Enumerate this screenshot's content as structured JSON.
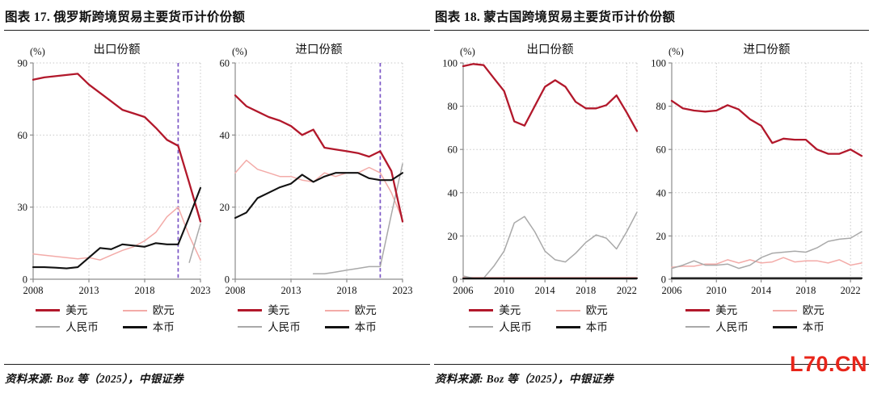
{
  "figures": [
    {
      "title": "图表 17. 俄罗斯跨境贸易主要货币计价份额",
      "source": "资料来源: Boz 等（2025），中银证券",
      "charts": [
        0,
        1
      ]
    },
    {
      "title": "图表 18. 蒙古国跨境贸易主要货币计价份额",
      "source": "资料来源: Boz 等（2025），中银证券",
      "charts": [
        2,
        3
      ]
    }
  ],
  "legend": {
    "items": [
      {
        "label": "美元",
        "key": "usd"
      },
      {
        "label": "欧元",
        "key": "eur"
      },
      {
        "label": "人民币",
        "key": "rmb"
      },
      {
        "label": "本币",
        "key": "loc"
      }
    ]
  },
  "colors": {
    "usd": "#b2182b",
    "eur": "#f3aba8",
    "rmb": "#a9a9a9",
    "loc": "#121212",
    "vline": "#7b57c6",
    "watermark": "#e8251a"
  },
  "watermark": "L70.CN",
  "chart_data": [
    {
      "type": "line",
      "title": "出口份额",
      "unit": "(%)",
      "x": [
        2008,
        2009,
        2010,
        2011,
        2012,
        2013,
        2014,
        2015,
        2016,
        2017,
        2018,
        2019,
        2020,
        2021,
        2022,
        2023
      ],
      "xticks": [
        2008,
        2013,
        2018,
        2023
      ],
      "ylim": [
        0,
        90
      ],
      "yticks": [
        0,
        30,
        60,
        90
      ],
      "vline": 2021,
      "grid": true,
      "series": [
        {
          "name": "美元",
          "key": "usd",
          "values": [
            83,
            84,
            84.5,
            85,
            85.5,
            81,
            77.5,
            74,
            70.5,
            69,
            67.5,
            63,
            58,
            55.5,
            40,
            24
          ]
        },
        {
          "name": "欧元",
          "key": "eur",
          "values": [
            10.5,
            10,
            9.5,
            9,
            8.5,
            9,
            8,
            10,
            12,
            13.5,
            16,
            19.5,
            26,
            30,
            18,
            8
          ]
        },
        {
          "name": "人民币",
          "key": "rmb",
          "values": [
            null,
            null,
            null,
            null,
            null,
            null,
            null,
            null,
            null,
            null,
            null,
            null,
            null,
            null,
            7,
            23
          ]
        },
        {
          "name": "本币",
          "key": "loc",
          "values": [
            5,
            5,
            4.8,
            4.5,
            5,
            9,
            13,
            12.5,
            14.5,
            14,
            13.5,
            15,
            14.5,
            14.5,
            26,
            38
          ]
        }
      ]
    },
    {
      "type": "line",
      "title": "进口份额",
      "unit": "(%)",
      "x": [
        2008,
        2009,
        2010,
        2011,
        2012,
        2013,
        2014,
        2015,
        2016,
        2017,
        2018,
        2019,
        2020,
        2021,
        2022,
        2023
      ],
      "xticks": [
        2008,
        2013,
        2018,
        2023
      ],
      "ylim": [
        0,
        60
      ],
      "yticks": [
        0,
        20,
        40,
        60
      ],
      "vline": 2021,
      "grid": true,
      "series": [
        {
          "name": "美元",
          "key": "usd",
          "values": [
            51,
            48,
            46.5,
            45,
            44,
            42.5,
            40,
            41.5,
            36.5,
            36,
            35.5,
            35,
            34,
            35.5,
            30,
            16
          ]
        },
        {
          "name": "欧元",
          "key": "eur",
          "values": [
            29.5,
            33,
            30.5,
            29.5,
            28.5,
            28.5,
            27.5,
            27,
            29.5,
            28.5,
            29.5,
            29.5,
            31,
            29.5,
            24,
            16.5
          ]
        },
        {
          "name": "人民币",
          "key": "rmb",
          "values": [
            null,
            null,
            null,
            null,
            null,
            null,
            null,
            1.5,
            1.5,
            2,
            2.5,
            3,
            3.5,
            3.5,
            18,
            32
          ]
        },
        {
          "name": "本币",
          "key": "loc",
          "values": [
            17,
            18.5,
            22.5,
            24,
            25.5,
            26.5,
            29,
            27,
            28.5,
            29.5,
            29.5,
            29.5,
            28,
            27.5,
            27.5,
            29.5
          ]
        }
      ]
    },
    {
      "type": "line",
      "title": "出口份额",
      "unit": "(%)",
      "x": [
        2006,
        2007,
        2008,
        2009,
        2010,
        2011,
        2012,
        2013,
        2014,
        2015,
        2016,
        2017,
        2018,
        2019,
        2020,
        2021,
        2022,
        2023
      ],
      "xticks": [
        2006,
        2010,
        2014,
        2018,
        2022
      ],
      "ylim": [
        0,
        100
      ],
      "yticks": [
        0,
        20,
        40,
        60,
        80,
        100
      ],
      "vline": null,
      "grid": true,
      "series": [
        {
          "name": "美元",
          "key": "usd",
          "values": [
            98.5,
            99.5,
            99,
            93,
            87,
            73,
            71,
            80,
            89,
            92,
            89,
            82,
            79,
            79,
            80.5,
            85,
            77,
            68.5
          ]
        },
        {
          "name": "欧元",
          "key": "eur",
          "values": [
            0.8,
            0.8,
            0.8,
            0.8,
            0.8,
            0.8,
            0.8,
            0.8,
            0.8,
            0.8,
            0.8,
            0.8,
            0.8,
            0.8,
            0.8,
            0.8,
            0.8,
            0.8
          ]
        },
        {
          "name": "人民币",
          "key": "rmb",
          "values": [
            1.5,
            0.5,
            0.5,
            6,
            13,
            26,
            29,
            22,
            13,
            9,
            8,
            12,
            17,
            20.5,
            19,
            14,
            22,
            31
          ]
        },
        {
          "name": "本币",
          "key": "loc",
          "values": [
            0.4,
            0.4,
            0.4,
            0.4,
            0.4,
            0.4,
            0.4,
            0.4,
            0.4,
            0.4,
            0.4,
            0.4,
            0.4,
            0.4,
            0.4,
            0.4,
            0.4,
            0.4
          ]
        }
      ]
    },
    {
      "type": "line",
      "title": "进口份额",
      "unit": "(%)",
      "x": [
        2006,
        2007,
        2008,
        2009,
        2010,
        2011,
        2012,
        2013,
        2014,
        2015,
        2016,
        2017,
        2018,
        2019,
        2020,
        2021,
        2022,
        2023
      ],
      "xticks": [
        2006,
        2010,
        2014,
        2018,
        2022
      ],
      "ylim": [
        0,
        100
      ],
      "yticks": [
        0,
        20,
        40,
        60,
        80,
        100
      ],
      "vline": null,
      "grid": true,
      "series": [
        {
          "name": "美元",
          "key": "usd",
          "values": [
            82.5,
            79,
            78,
            77.5,
            78,
            80.5,
            78.5,
            74,
            71,
            63,
            65,
            64.5,
            64.5,
            60,
            58,
            58,
            60,
            57
          ]
        },
        {
          "name": "欧元",
          "key": "eur",
          "values": [
            5.5,
            6,
            6,
            7,
            7,
            9,
            7.5,
            9,
            7.5,
            8,
            10,
            8,
            8.5,
            8.5,
            7.5,
            9,
            6.5,
            7.5
          ]
        },
        {
          "name": "人民币",
          "key": "rmb",
          "values": [
            5,
            6.5,
            8.5,
            6.5,
            6.5,
            7,
            5,
            6.5,
            10,
            12,
            12.5,
            13,
            12.5,
            14.5,
            17.5,
            18.5,
            19,
            22
          ]
        },
        {
          "name": "本币",
          "key": "loc",
          "values": [
            0.5,
            0.5,
            0.5,
            0.5,
            0.5,
            0.5,
            0.5,
            0.5,
            0.5,
            0.5,
            0.5,
            0.5,
            0.5,
            0.5,
            0.5,
            0.5,
            0.5,
            0.5
          ]
        }
      ]
    }
  ]
}
